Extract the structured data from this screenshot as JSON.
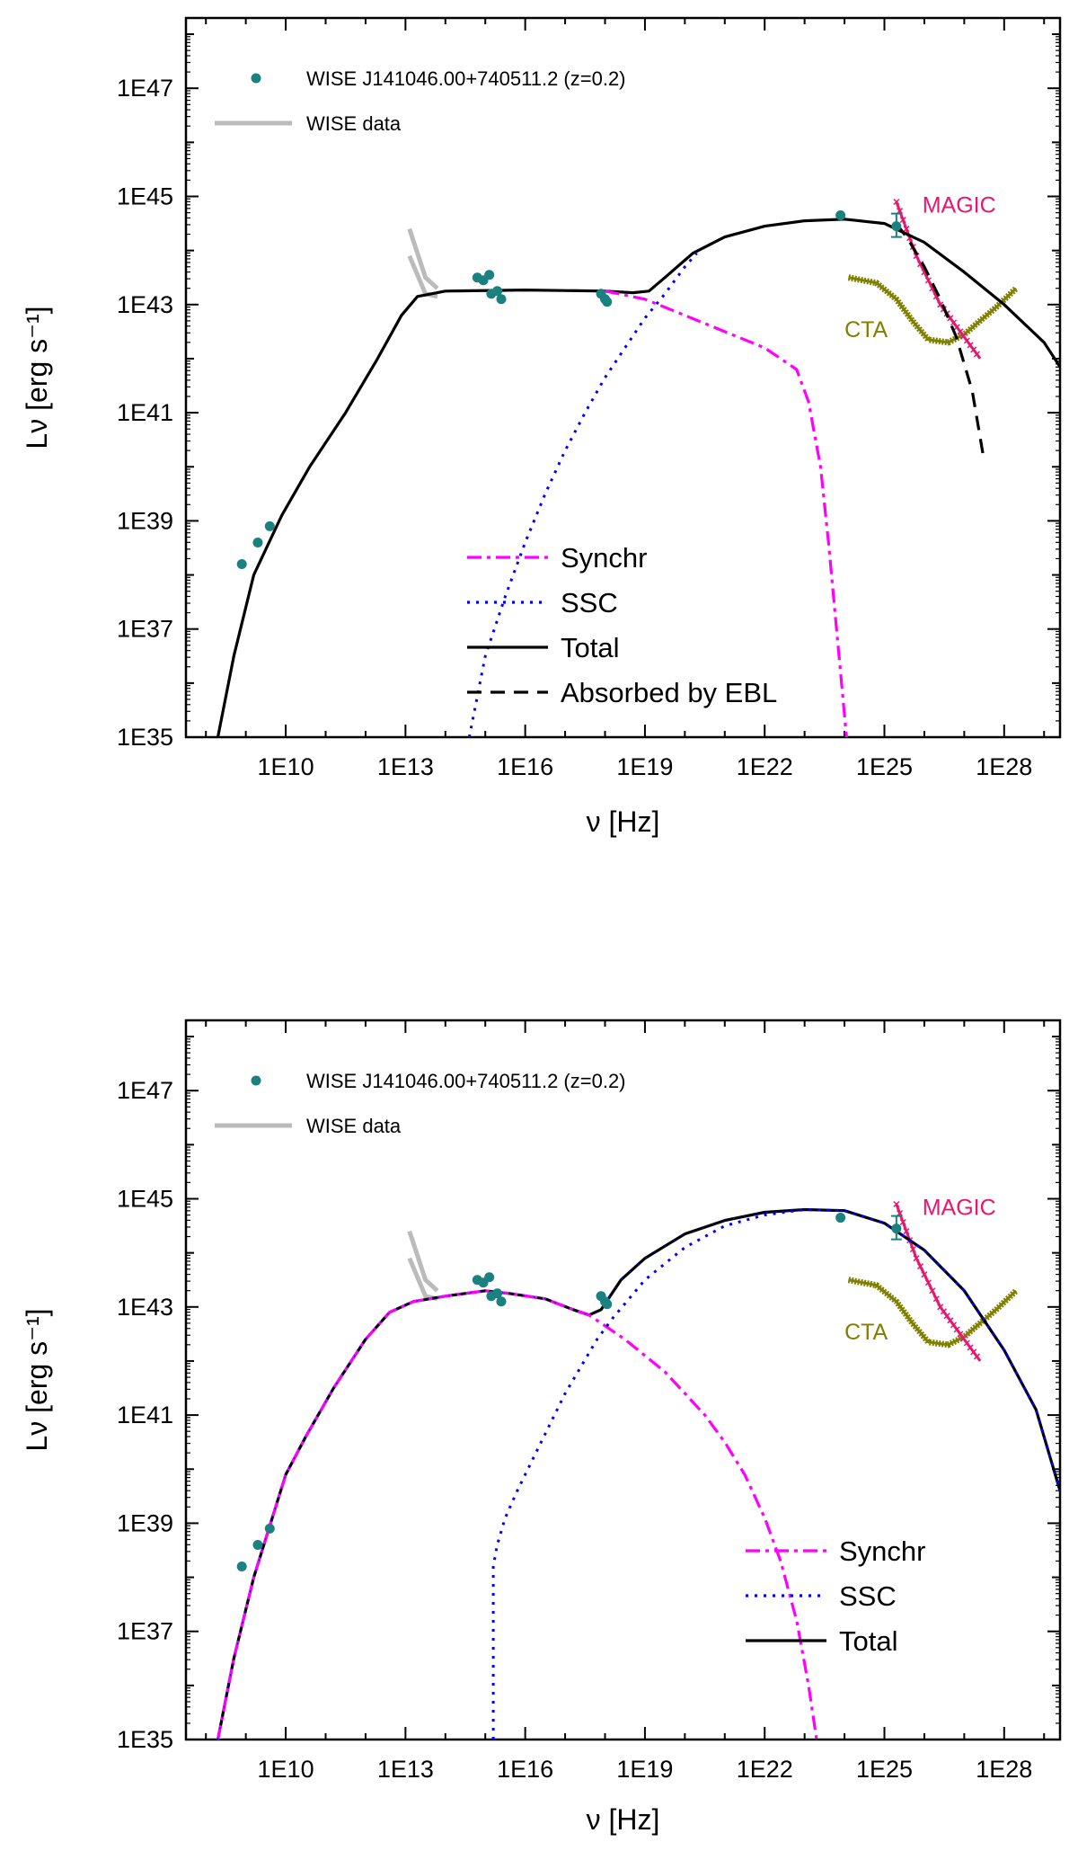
{
  "colors": {
    "synchr": "#ff00ff",
    "ssc": "#0000ff",
    "total": "#000000",
    "ebl": "#000000",
    "data_points": "#1a8080",
    "wise": "#bbbbbb",
    "magic": "#e8176e",
    "cta": "#808000"
  },
  "chart_data": [
    {
      "type": "line",
      "xlabel": "ν [Hz]",
      "ylabel": "Lν [erg s⁻¹]",
      "x_scale": "log",
      "y_scale": "log",
      "xlim_log10": [
        7.5,
        29.4
      ],
      "ylim_log10": [
        35,
        48.3
      ],
      "x_ticks": [
        "1E10",
        "1E13",
        "1E16",
        "1E19",
        "1E22",
        "1E25",
        "1E28"
      ],
      "x_tick_values_log10": [
        10,
        13,
        16,
        19,
        22,
        25,
        28
      ],
      "y_ticks": [
        "1E35",
        "1E37",
        "1E39",
        "1E41",
        "1E43",
        "1E45",
        "1E47"
      ],
      "y_tick_values_log10": [
        35,
        37,
        39,
        41,
        43,
        45,
        47
      ],
      "legend_top": {
        "points_label": "WISE J141046.00+740511.2 (z=0.2)",
        "wise_label": "WISE data",
        "position": "top-left"
      },
      "legend_bottom": {
        "entries": [
          "Synchr",
          "SSC",
          "Total",
          "Absorbed by EBL"
        ],
        "styles": [
          "dashdot",
          "dotted",
          "solid",
          "dashed"
        ],
        "position": "bottom-center"
      },
      "annotations": {
        "magic": "MAGIC",
        "cta": "CTA"
      },
      "data_points": {
        "x_log10": [
          8.9,
          9.3,
          9.6,
          14.8,
          14.95,
          15.1,
          15.15,
          15.3,
          15.4,
          17.9,
          18.0,
          18.05,
          23.9,
          25.3
        ],
        "y_log10": [
          38.2,
          38.6,
          38.9,
          43.5,
          43.45,
          43.55,
          43.2,
          43.25,
          43.1,
          43.2,
          43.1,
          43.05,
          44.65,
          44.45
        ]
      },
      "wise_data": [
        {
          "x_log10": [
            13.1,
            13.5,
            13.8
          ],
          "y_log10": [
            44.4,
            43.5,
            43.3
          ]
        },
        {
          "x_log10": [
            13.1,
            13.5,
            13.8
          ],
          "y_log10": [
            43.9,
            43.2,
            43.15
          ]
        }
      ],
      "series": [
        {
          "name": "Total",
          "x_log10": [
            8.3,
            8.7,
            9.2,
            9.9,
            10.6,
            11.5,
            12.3,
            12.9,
            13.3,
            14,
            16,
            18,
            18.7,
            19.1,
            19.5,
            20.2,
            21,
            22,
            23,
            24,
            25,
            26,
            27,
            28,
            29,
            29.4
          ],
          "y_log10": [
            35,
            36.5,
            38,
            39.1,
            40,
            41,
            42,
            42.8,
            43.15,
            43.25,
            43.27,
            43.25,
            43.22,
            43.25,
            43.5,
            43.95,
            44.25,
            44.45,
            44.55,
            44.58,
            44.5,
            44.15,
            43.6,
            43,
            42.3,
            41.85
          ]
        },
        {
          "name": "Synchr",
          "x_log10": [
            18,
            19,
            20,
            21,
            22,
            22.8,
            23.1,
            23.4,
            23.6,
            23.8,
            23.95,
            24.05
          ],
          "y_log10": [
            43.25,
            43.1,
            42.8,
            42.5,
            42.2,
            41.8,
            41.2,
            40,
            38.6,
            37,
            35.8,
            35
          ]
        },
        {
          "name": "SSC",
          "x_log10": [
            14.6,
            15,
            15.5,
            16,
            16.5,
            17,
            17.5,
            18,
            18.5,
            19,
            19.5,
            20,
            20.3
          ],
          "y_log10": [
            35,
            36.5,
            37.6,
            38.6,
            39.5,
            40.3,
            41,
            41.65,
            42.2,
            42.75,
            43.2,
            43.7,
            43.95
          ]
        },
        {
          "name": "Absorbed by EBL",
          "x_log10": [
            25.3,
            25.6,
            26,
            26.4,
            26.8,
            27.2,
            27.5
          ],
          "y_log10": [
            44.5,
            44.2,
            43.7,
            43.1,
            42.4,
            41.4,
            40.1
          ]
        }
      ],
      "magic_curve": {
        "x_log10": [
          25.3,
          25.8,
          26.4,
          26.9,
          27.4
        ],
        "y_log10": [
          44.9,
          43.9,
          43.0,
          42.5,
          42.0
        ]
      },
      "cta_curve": {
        "x_log10": [
          24.1,
          24.8,
          25.3,
          25.7,
          26.1,
          26.6,
          27.0,
          27.4,
          27.8,
          28.3
        ],
        "y_log10": [
          43.5,
          43.4,
          43.1,
          42.7,
          42.35,
          42.3,
          42.45,
          42.7,
          42.95,
          43.3
        ]
      }
    },
    {
      "type": "line",
      "xlabel": "ν [Hz]",
      "ylabel": "Lν [erg s⁻¹]",
      "x_scale": "log",
      "y_scale": "log",
      "xlim_log10": [
        7.5,
        29.4
      ],
      "ylim_log10": [
        35,
        48.3
      ],
      "x_ticks": [
        "1E10",
        "1E13",
        "1E16",
        "1E19",
        "1E22",
        "1E25",
        "1E28"
      ],
      "x_tick_values_log10": [
        10,
        13,
        16,
        19,
        22,
        25,
        28
      ],
      "y_ticks": [
        "1E35",
        "1E37",
        "1E39",
        "1E41",
        "1E43",
        "1E45",
        "1E47"
      ],
      "y_tick_values_log10": [
        35,
        37,
        39,
        41,
        43,
        45,
        47
      ],
      "legend_top": {
        "points_label": "WISE J141046.00+740511.2 (z=0.2)",
        "wise_label": "WISE data",
        "position": "top-left"
      },
      "legend_bottom": {
        "entries": [
          "Synchr",
          "SSC",
          "Total"
        ],
        "styles": [
          "dashdot",
          "dotted",
          "solid"
        ],
        "position": "bottom-right"
      },
      "annotations": {
        "magic": "MAGIC",
        "cta": "CTA"
      },
      "data_points": {
        "x_log10": [
          8.9,
          9.3,
          9.6,
          14.8,
          14.95,
          15.1,
          15.15,
          15.3,
          15.4,
          17.9,
          18.0,
          18.05,
          23.9,
          25.3
        ],
        "y_log10": [
          38.2,
          38.6,
          38.9,
          43.5,
          43.45,
          43.55,
          43.2,
          43.25,
          43.1,
          43.2,
          43.1,
          43.05,
          44.65,
          44.45
        ]
      },
      "wise_data": [
        {
          "x_log10": [
            13.1,
            13.5,
            13.8
          ],
          "y_log10": [
            44.4,
            43.5,
            43.3
          ]
        },
        {
          "x_log10": [
            13.1,
            13.5,
            13.8
          ],
          "y_log10": [
            43.9,
            43.2,
            43.15
          ]
        }
      ],
      "series": [
        {
          "name": "Total",
          "x_log10": [
            8.3,
            8.7,
            9.2,
            10,
            10.5,
            11.2,
            12,
            12.6,
            13.2,
            14,
            15,
            15.6,
            16.5,
            17.2,
            17.6,
            17.9,
            18.4,
            19,
            20,
            21,
            22,
            23,
            24,
            25,
            26,
            27,
            28,
            28.8,
            29.4
          ],
          "y_log10": [
            35,
            36.5,
            38,
            39.9,
            40.6,
            41.5,
            42.4,
            42.9,
            43.1,
            43.2,
            43.3,
            43.25,
            43.15,
            42.95,
            42.85,
            42.95,
            43.5,
            43.9,
            44.35,
            44.6,
            44.75,
            44.8,
            44.78,
            44.55,
            44.05,
            43.3,
            42.2,
            41.1,
            39.6
          ]
        },
        {
          "name": "Synchr",
          "x_log10": [
            8.3,
            8.7,
            9.2,
            10,
            10.5,
            11.2,
            12,
            12.6,
            13.2,
            14,
            15,
            15.6,
            16.5,
            17.2,
            17.6,
            18,
            18.5,
            19,
            19.5,
            20,
            20.5,
            21,
            21.5,
            22,
            22.4,
            22.8,
            23.1,
            23.3
          ],
          "y_log10": [
            35,
            36.5,
            38,
            39.9,
            40.6,
            41.5,
            42.4,
            42.9,
            43.1,
            43.2,
            43.3,
            43.25,
            43.15,
            42.95,
            42.85,
            42.65,
            42.4,
            42.1,
            41.8,
            41.4,
            41.0,
            40.5,
            39.9,
            39.1,
            38.3,
            37.2,
            36.0,
            35
          ]
        },
        {
          "name": "SSC",
          "x_log10": [
            15.2,
            15.2,
            15.3,
            15.5,
            15.8,
            16.2,
            16.6,
            17,
            17.4,
            17.8,
            18.2,
            18.6,
            19,
            20,
            21,
            22,
            23,
            24,
            25,
            26,
            27,
            28,
            28.8,
            29.4
          ],
          "y_log10": [
            35,
            38.2,
            38.6,
            39.1,
            39.6,
            40.2,
            40.8,
            41.4,
            41.9,
            42.4,
            42.8,
            43.15,
            43.5,
            44.1,
            44.5,
            44.7,
            44.8,
            44.78,
            44.55,
            44.05,
            43.3,
            42.2,
            41.1,
            39.6
          ]
        }
      ],
      "magic_curve": {
        "x_log10": [
          25.3,
          25.8,
          26.4,
          26.9,
          27.4
        ],
        "y_log10": [
          44.9,
          43.9,
          43.0,
          42.5,
          42.0
        ]
      },
      "cta_curve": {
        "x_log10": [
          24.1,
          24.8,
          25.3,
          25.7,
          26.1,
          26.6,
          27.0,
          27.4,
          27.8,
          28.3
        ],
        "y_log10": [
          43.5,
          43.4,
          43.1,
          42.7,
          42.35,
          42.3,
          42.45,
          42.7,
          42.95,
          43.3
        ]
      }
    }
  ]
}
